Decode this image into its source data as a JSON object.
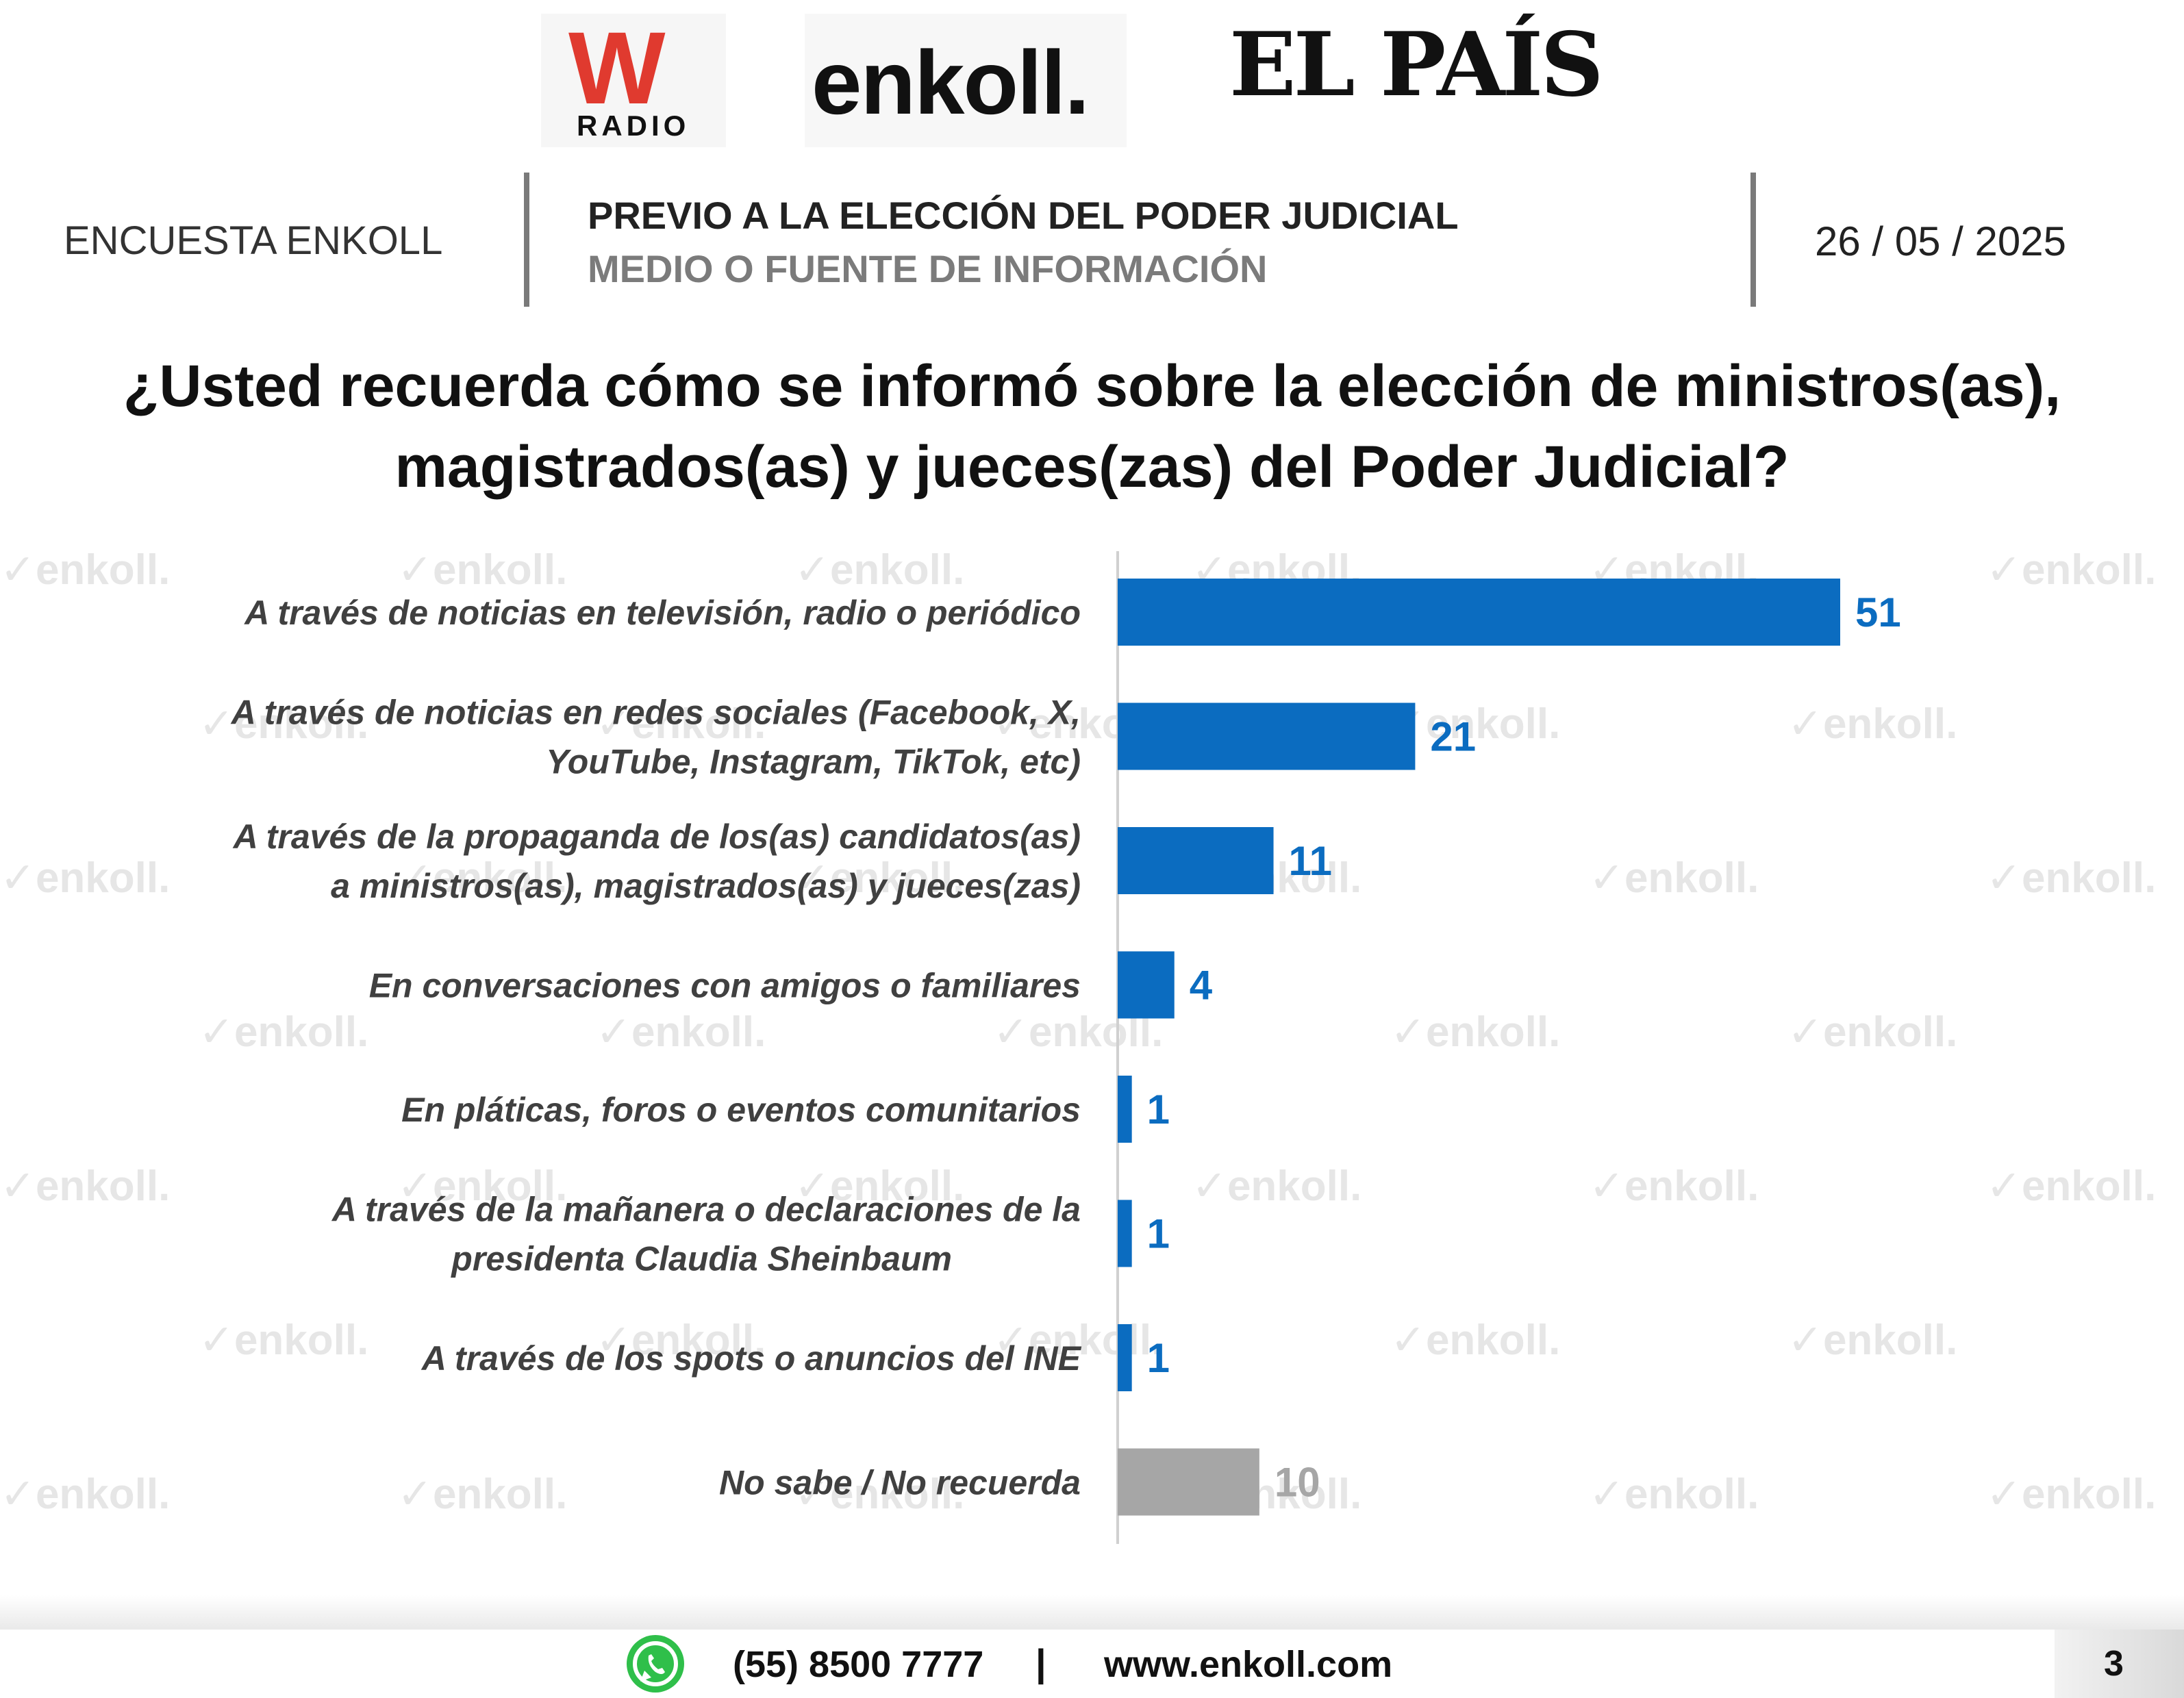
{
  "logos": {
    "w_radio": {
      "mark": "W",
      "sub": "RADIO"
    },
    "enkoll": "enkoll.",
    "el_pais": "EL PAÍS"
  },
  "header": {
    "left": "ENCUESTA ENKOLL",
    "title": "PREVIO A LA ELECCIÓN DEL PODER JUDICIAL",
    "subtitle": "MEDIO O FUENTE DE INFORMACIÓN",
    "date": "26 / 05 / 2025"
  },
  "question": "¿Usted recuerda cómo se informó sobre la elección de ministros(as), magistrados(as) y jueces(zas) del Poder Judicial?",
  "watermark": "enkoll.",
  "colors": {
    "bar": "#0b6cc0",
    "bar_dk": "#a6a6a6",
    "label_dk": "#a6a6a6",
    "axis": "#d0d0d0"
  },
  "chart_data": {
    "type": "bar",
    "orientation": "horizontal",
    "categories": [
      [
        "A través de noticias en televisión, radio o periódico"
      ],
      [
        "A través de noticias en redes sociales (Facebook, X,",
        "YouTube, Instagram, TikTok, etc)"
      ],
      [
        "A través de la propaganda de los(as) candidatos(as)",
        "a ministros(as), magistrados(as) y jueces(zas)"
      ],
      [
        "En conversaciones con amigos o familiares"
      ],
      [
        "En pláticas, foros o eventos comunitarios"
      ],
      [
        "A través de la mañanera o declaraciones de la",
        "presidenta Claudia Sheinbaum"
      ],
      [
        "A través de los spots o anuncios del INE"
      ],
      [
        "No sabe / No recuerda"
      ]
    ],
    "values": [
      51,
      21,
      11,
      4,
      1,
      1,
      1,
      10
    ],
    "value_labels": [
      "51",
      "21",
      "11",
      "4",
      "1",
      "1",
      "1",
      "10"
    ],
    "xlim": [
      0,
      51
    ],
    "grid": false,
    "legend": "none"
  },
  "footer": {
    "icon": "whatsapp-icon",
    "phone": "(55) 8500 7777",
    "separator": "|",
    "website": "www.enkoll.com",
    "page": "3"
  }
}
